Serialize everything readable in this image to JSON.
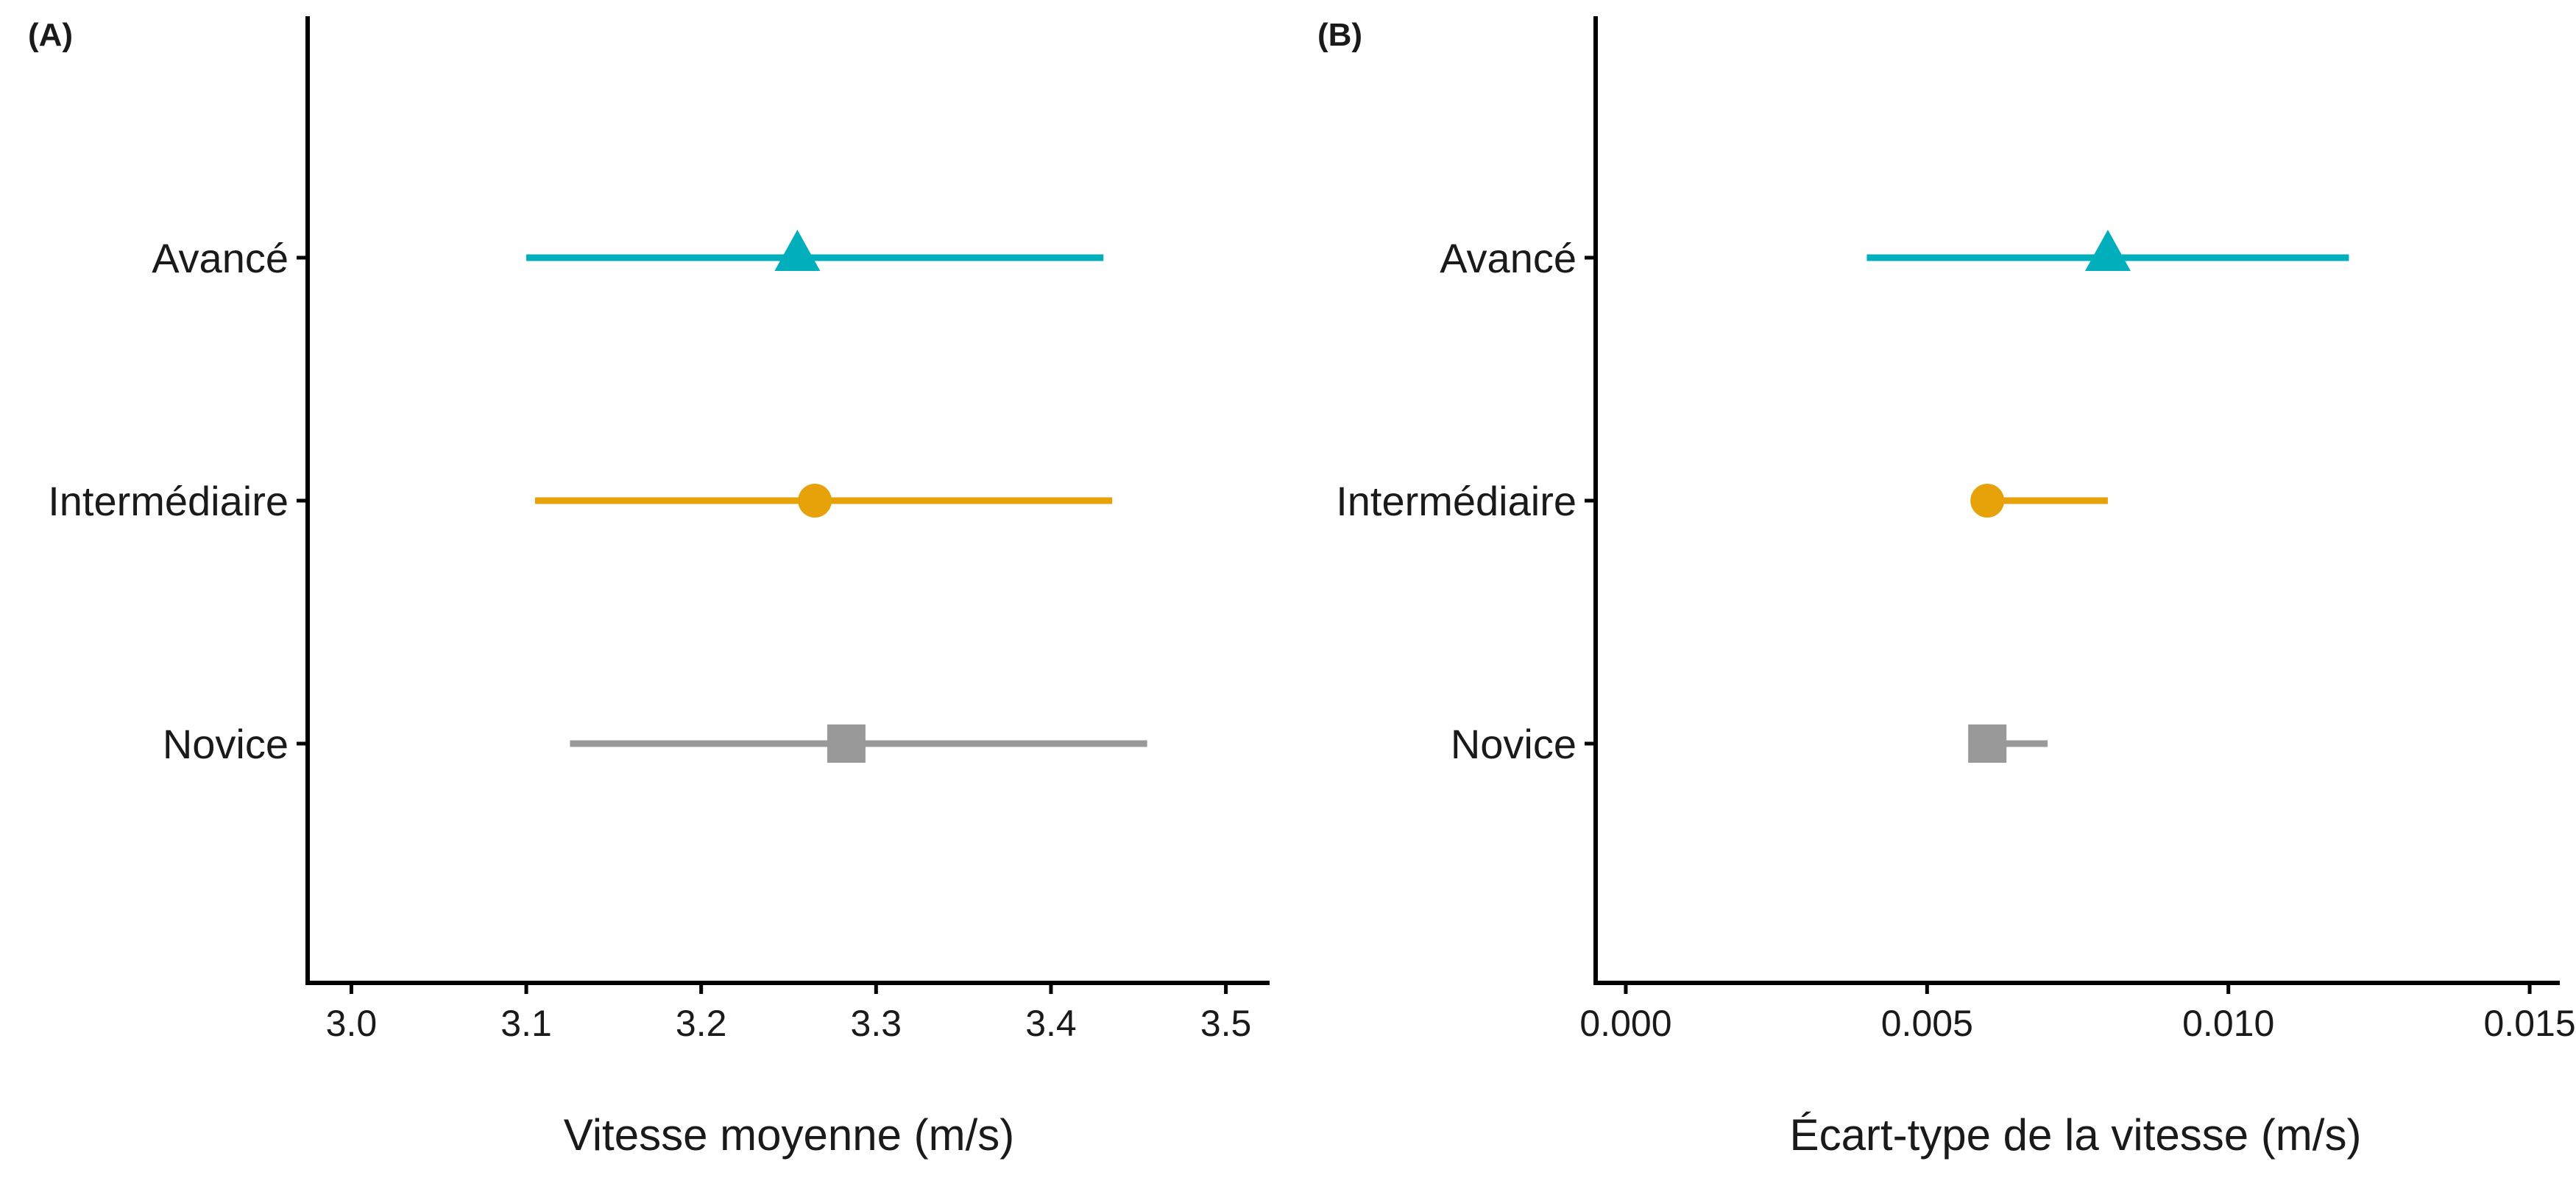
{
  "chart_data": [
    {
      "type": "scatter",
      "panel_label": "(A)",
      "xlabel": "Vitesse moyenne (m/s)",
      "xlim": [
        2.975,
        3.525
      ],
      "xticks": [
        "3.0",
        "3.1",
        "3.2",
        "3.3",
        "3.4",
        "3.5"
      ],
      "xtick_values": [
        3.0,
        3.1,
        3.2,
        3.3,
        3.4,
        3.5
      ],
      "grid": false,
      "categories": [
        "Avancé",
        "Intermédiaire",
        "Novice"
      ],
      "series": [
        {
          "category": "Avancé",
          "estimate": 3.255,
          "lower": 3.1,
          "upper": 3.43,
          "marker": "triangle",
          "color": "#00AFBB"
        },
        {
          "category": "Intermédiaire",
          "estimate": 3.265,
          "lower": 3.105,
          "upper": 3.435,
          "marker": "circle",
          "color": "#E7A20A"
        },
        {
          "category": "Novice",
          "estimate": 3.283,
          "lower": 3.125,
          "upper": 3.455,
          "marker": "square",
          "color": "#999999"
        }
      ]
    },
    {
      "type": "scatter",
      "panel_label": "(B)",
      "xlabel": "Écart-type de la vitesse (m/s)",
      "xlim": [
        -0.0005,
        0.0155
      ],
      "xticks": [
        "0.000",
        "0.005",
        "0.010",
        "0.015"
      ],
      "xtick_values": [
        0.0,
        0.005,
        0.01,
        0.015
      ],
      "grid": false,
      "categories": [
        "Avancé",
        "Intermédiaire",
        "Novice"
      ],
      "series": [
        {
          "category": "Avancé",
          "estimate": 0.008,
          "lower": 0.004,
          "upper": 0.012,
          "marker": "triangle",
          "color": "#00AFBB"
        },
        {
          "category": "Intermédiaire",
          "estimate": 0.006,
          "lower": 0.006,
          "upper": 0.008,
          "marker": "circle",
          "color": "#E7A20A"
        },
        {
          "category": "Novice",
          "estimate": 0.006,
          "lower": 0.006,
          "upper": 0.007,
          "marker": "square",
          "color": "#999999"
        }
      ]
    }
  ]
}
